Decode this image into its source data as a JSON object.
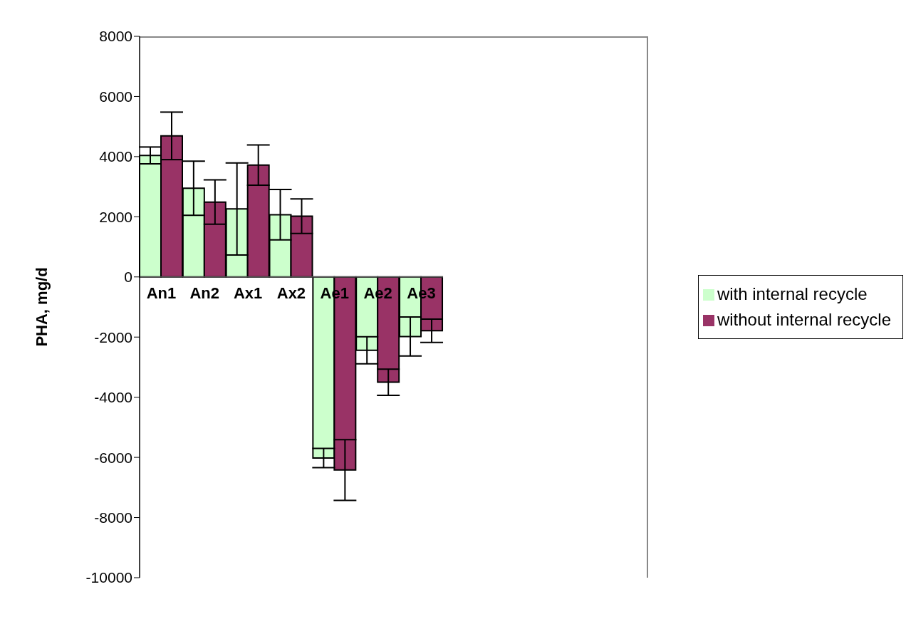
{
  "chart_data": {
    "type": "bar",
    "ylabel": "PHA, mg/d",
    "categories": [
      "An1",
      "An2",
      "Ax1",
      "Ax2",
      "Ae1",
      "Ae2",
      "Ae3"
    ],
    "series": [
      {
        "name": "with internal recycle",
        "color": "#ccffcc",
        "values": [
          4040,
          2950,
          2260,
          2070,
          -6020,
          -2440,
          -1980
        ],
        "errors": [
          280,
          900,
          1530,
          835,
          320,
          450,
          650
        ]
      },
      {
        "name": "without internal recycle",
        "color": "#993366",
        "values": [
          4690,
          2490,
          3720,
          2020,
          -6420,
          -3500,
          -1790
        ],
        "errors": [
          790,
          735,
          670,
          575,
          1010,
          435,
          390
        ]
      }
    ],
    "ylim": [
      -10000,
      8000
    ],
    "yticks": [
      -10000,
      -8000,
      -6000,
      -4000,
      -2000,
      0,
      2000,
      4000,
      6000,
      8000
    ],
    "legend": "right"
  }
}
